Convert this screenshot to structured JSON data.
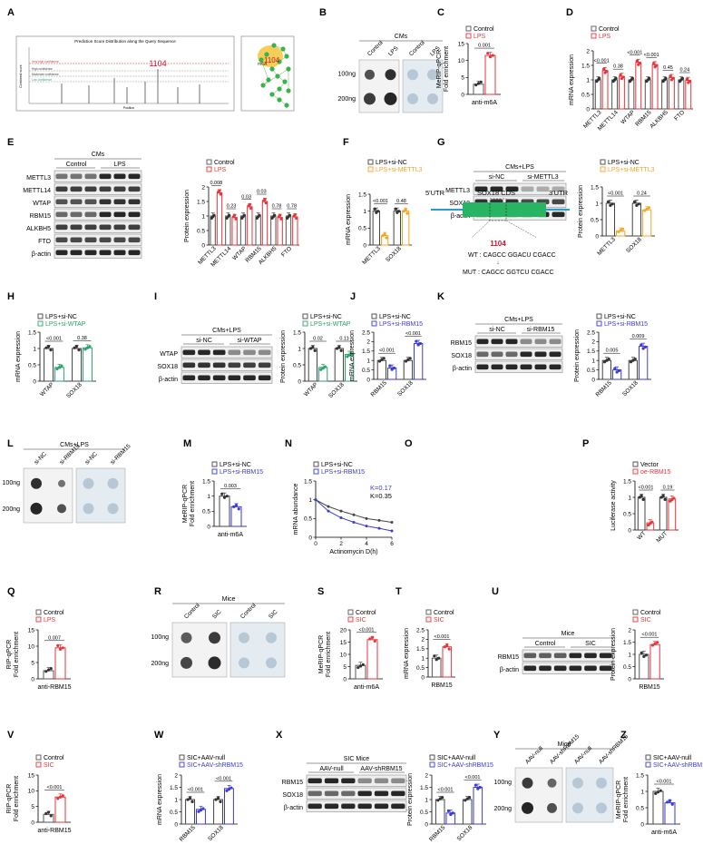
{
  "panels": [
    "A",
    "B",
    "C",
    "D",
    "E",
    "F",
    "G",
    "H",
    "I",
    "J",
    "K",
    "L",
    "M",
    "N",
    "O",
    "P",
    "Q",
    "R",
    "S",
    "T",
    "U",
    "V",
    "W",
    "X",
    "Y",
    "Z"
  ],
  "colors": {
    "control": "#555555",
    "lps": "#e8343a",
    "nc": "#444444",
    "si_orange": "#f5a623",
    "si_green": "#29a36a",
    "si_blue": "#3a3adb",
    "dot": "#1a1a1a",
    "dot_faint": "#b8c7d6"
  },
  "text": {
    "a_title": "Prediction Score Distribution along the Query Sequence",
    "a_mark": "1104",
    "a_leg1": "Very high confidence",
    "a_leg2": "High confidence",
    "a_leg3": "Moderate confidence",
    "a_leg4": "Low confidence",
    "a_x": "Position",
    "a_y": "Combined score",
    "m6a": "m6A",
    "anti_m6a": "anti-m6A",
    "anti_rbm15": "anti-RBM15",
    "ng100": "100ng",
    "ng200": "200ng",
    "cms": "CMs",
    "cms_lps": "CMs+LPS",
    "mice": "Mice",
    "sic_mice": "SIC Mice",
    "control": "Control",
    "lps": "LPS",
    "sic": "SIC",
    "si_nc": "si-NC",
    "si_mettl3": "si-METTL3",
    "si_wtap": "si-WTAP",
    "si_rbm15": "si-RBM15",
    "aav_null": "AAV-null",
    "aav_shrbm15": "AAV-shRBM15",
    "beta_actin": "β-actin",
    "sox18": "SOX18",
    "rbm15": "RBM15",
    "mettl3": "METTL3",
    "wtap": "WTAP",
    "merip": "MeRIP-qPCR",
    "fold": "Fold enrichment",
    "rip": "RIP-qPCR",
    "mrna": "mRNA expression",
    "protein": "Protein expression",
    "mrna_ab": "mRNA abundance",
    "luc": "Luciferase activity",
    "actd": "Actinomycin D(h)",
    "n_k1": "K=0.17",
    "n_k2": "K=0.35",
    "utr5": "5'UTR",
    "cds": "SOX18 CDS",
    "utr3": "3'UTR",
    "o_site": "1104",
    "wt_seq": "WT : CAGCC GGACU CGACC",
    "mut_seq": "MUT : CAGCC GGTCU CGACC",
    "wt": "WT",
    "mut": "MUT",
    "vector": "Vector",
    "oe_rbm15": "oe-RBM15"
  },
  "legends": {
    "ctrl_lps": [
      "Control",
      "LPS"
    ],
    "nc_mettl3": [
      "LPS+si-NC",
      "LPS+si-METTL3"
    ],
    "nc_wtap": [
      "LPS+si-NC",
      "LPS+si-WTAP"
    ],
    "nc_rbm15": [
      "LPS+si-NC",
      "LPS+si-RBM15"
    ],
    "vec_oe": [
      "Vector",
      "oe-RBM15"
    ],
    "ctrl_sic": [
      "Control",
      "SIC"
    ],
    "aav": [
      "SIC+AAV-null",
      "SIC+AAV-shRBM15"
    ]
  },
  "blot_labels": {
    "E": [
      "METTL3",
      "METTL14",
      "WTAP",
      "RBM15",
      "ALKBH5",
      "FTO",
      "β-actin"
    ],
    "G": [
      "METTL3",
      "SOX18",
      "β-actin"
    ],
    "I": [
      "WTAP",
      "SOX18",
      "β-actin"
    ],
    "K": [
      "RBM15",
      "SOX18",
      "β-actin"
    ],
    "U": [
      "RBM15",
      "β-actin"
    ],
    "X": [
      "RBM15",
      "SOX18",
      "β-actin"
    ]
  },
  "chart_data": [
    {
      "panel": "C",
      "type": "bar",
      "ylabel": "MeRIP-qPCR\nFold enrichment",
      "xlabel": "anti-m6A",
      "ylim": [
        0,
        15
      ],
      "yticks": [
        0,
        5,
        10,
        15
      ],
      "series": [
        {
          "name": "Control",
          "values": [
            3.0
          ]
        },
        {
          "name": "LPS",
          "values": [
            11.5
          ]
        }
      ],
      "pvals": [
        "0.001"
      ]
    },
    {
      "panel": "D",
      "type": "bar",
      "ylabel": "mRNA expression",
      "ylim": [
        0,
        2.0
      ],
      "yticks": [
        0,
        0.5,
        1.0,
        1.5,
        2.0
      ],
      "categories": [
        "METTL3",
        "METTL14",
        "WTAP",
        "RBM15",
        "ALKBH5",
        "FTO"
      ],
      "series": [
        {
          "name": "Control",
          "values": [
            1.0,
            1.0,
            1.0,
            1.0,
            1.0,
            1.0
          ]
        },
        {
          "name": "LPS",
          "values": [
            1.32,
            1.12,
            1.6,
            1.52,
            1.08,
            0.98
          ]
        }
      ],
      "pvals": [
        "<0.001",
        "0.38",
        "<0.001",
        "<0.001",
        "0.45",
        "0.24"
      ]
    },
    {
      "panel": "E",
      "type": "bar",
      "ylabel": "Protein expression",
      "ylim": [
        0,
        2.0
      ],
      "yticks": [
        0,
        0.5,
        1.0,
        1.5,
        2.0
      ],
      "categories": [
        "METTL3",
        "METTL14",
        "WTAP",
        "RBM15",
        "ALKBH5",
        "FTO"
      ],
      "series": [
        {
          "name": "Control",
          "values": [
            1.0,
            1.0,
            1.0,
            1.0,
            1.0,
            1.0
          ]
        },
        {
          "name": "LPS",
          "values": [
            1.8,
            0.95,
            1.32,
            1.5,
            0.95,
            0.97
          ]
        }
      ],
      "pvals": [
        "0.008",
        "0.23",
        "0.03",
        "0.03",
        "0.78",
        "0.78"
      ]
    },
    {
      "panel": "F",
      "type": "bar",
      "ylabel": "mRNA expression",
      "ylim": [
        0,
        1.5
      ],
      "yticks": [
        0,
        0.5,
        1.0,
        1.5
      ],
      "categories": [
        "METTL3",
        "SOX18"
      ],
      "series": [
        {
          "name": "LPS+si-NC",
          "values": [
            1.0,
            1.0
          ]
        },
        {
          "name": "LPS+si-METTL3",
          "values": [
            0.28,
            1.0
          ]
        }
      ],
      "pvals": [
        "<0.001",
        "0.48"
      ]
    },
    {
      "panel": "G",
      "type": "bar",
      "ylabel": "Protein expression",
      "ylim": [
        0,
        1.5
      ],
      "yticks": [
        0,
        0.5,
        1.0,
        1.5
      ],
      "categories": [
        "METTL3",
        "SOX18"
      ],
      "series": [
        {
          "name": "LPS+si-NC",
          "values": [
            1.0,
            1.0
          ]
        },
        {
          "name": "LPS+si-METTL3",
          "values": [
            0.15,
            0.8
          ]
        }
      ],
      "pvals": [
        "<0.001",
        "0.24"
      ]
    },
    {
      "panel": "H",
      "type": "bar",
      "ylabel": "mRNA expression",
      "ylim": [
        0,
        1.5
      ],
      "yticks": [
        0,
        0.5,
        1.0,
        1.5
      ],
      "categories": [
        "WTAP",
        "SOX18"
      ],
      "series": [
        {
          "name": "LPS+si-NC",
          "values": [
            1.0,
            1.0
          ]
        },
        {
          "name": "LPS+si-WTAP",
          "values": [
            0.42,
            1.02
          ]
        }
      ],
      "pvals": [
        "<0.001",
        "0.38"
      ]
    },
    {
      "panel": "I",
      "type": "bar",
      "ylabel": "Protein expression",
      "ylim": [
        0,
        1.5
      ],
      "yticks": [
        0,
        0.5,
        1.0,
        1.5
      ],
      "categories": [
        "WTAP",
        "SOX18"
      ],
      "series": [
        {
          "name": "LPS+si-NC",
          "values": [
            1.0,
            1.0
          ]
        },
        {
          "name": "LPS+si-WTAP",
          "values": [
            0.42,
            0.82
          ]
        }
      ],
      "pvals": [
        "0.02",
        "0.11"
      ]
    },
    {
      "panel": "J",
      "type": "bar",
      "ylabel": "mRNA expression",
      "ylim": [
        0,
        2.5
      ],
      "yticks": [
        0,
        0.5,
        1.0,
        1.5,
        2.0,
        2.5
      ],
      "categories": [
        "RBM15",
        "SOX18"
      ],
      "series": [
        {
          "name": "LPS+si-NC",
          "values": [
            1.0,
            1.0
          ]
        },
        {
          "name": "LPS+si-RBM15",
          "values": [
            0.6,
            1.9
          ]
        }
      ],
      "pvals": [
        "<0.001",
        "<0.001"
      ]
    },
    {
      "panel": "K",
      "type": "bar",
      "ylabel": "Protein expression",
      "ylim": [
        0,
        2.5
      ],
      "yticks": [
        0,
        0.5,
        1.0,
        1.5,
        2.0,
        2.5
      ],
      "categories": [
        "RBM15",
        "SOX18"
      ],
      "series": [
        {
          "name": "LPS+si-NC",
          "values": [
            1.0,
            1.0
          ]
        },
        {
          "name": "LPS+si-RBM15",
          "values": [
            0.5,
            1.75
          ]
        }
      ],
      "pvals": [
        "0.005",
        "0.009"
      ]
    },
    {
      "panel": "M",
      "type": "bar",
      "ylabel": "MeRIP-qPCR\nFold enrichment",
      "xlabel": "anti-m6A",
      "ylim": [
        0,
        1.5
      ],
      "yticks": [
        0,
        0.5,
        1.0,
        1.5
      ],
      "series": [
        {
          "name": "LPS+si-NC",
          "values": [
            1.0
          ]
        },
        {
          "name": "LPS+si-RBM15",
          "values": [
            0.65
          ]
        }
      ],
      "pvals": [
        "0.003"
      ]
    },
    {
      "panel": "N",
      "type": "line",
      "ylabel": "mRNA abundance",
      "xlabel": "Actinomycin D(h)",
      "xlim": [
        0,
        6
      ],
      "ylim": [
        0,
        1.5
      ],
      "xticks": [
        0,
        2,
        4,
        6
      ],
      "yticks": [
        0,
        0.5,
        1.0,
        1.5
      ],
      "x": [
        0,
        1,
        2,
        3,
        4,
        5,
        6
      ],
      "series": [
        {
          "name": "LPS+si-NC",
          "values": [
            1.0,
            0.82,
            0.7,
            0.6,
            0.5,
            0.45,
            0.4
          ]
        },
        {
          "name": "LPS+si-RBM15",
          "values": [
            1.0,
            0.7,
            0.52,
            0.4,
            0.3,
            0.24,
            0.17
          ]
        }
      ]
    },
    {
      "panel": "P",
      "type": "bar",
      "ylabel": "Luciferase activity",
      "ylim": [
        0,
        1.5
      ],
      "yticks": [
        0,
        0.5,
        1.0,
        1.5
      ],
      "categories": [
        "WT",
        "MUT"
      ],
      "series": [
        {
          "name": "Vector",
          "values": [
            1.0,
            1.0
          ]
        },
        {
          "name": "oe-RBM15",
          "values": [
            0.22,
            0.95
          ]
        }
      ],
      "pvals": [
        "<0.001",
        "0.19"
      ]
    },
    {
      "panel": "Q",
      "type": "bar",
      "ylabel": "RIP-qPCR\nFold enrichment",
      "xlabel": "anti-RBM15",
      "ylim": [
        0,
        15
      ],
      "yticks": [
        0,
        5,
        10,
        15
      ],
      "series": [
        {
          "name": "Control",
          "values": [
            2.5
          ]
        },
        {
          "name": "LPS",
          "values": [
            9.5
          ]
        }
      ],
      "pvals": [
        "0.007"
      ]
    },
    {
      "panel": "S",
      "type": "bar",
      "ylabel": "MeRIP-qPCR\nFold enrichment",
      "xlabel": "anti-m6A",
      "ylim": [
        0,
        20
      ],
      "yticks": [
        0,
        5,
        10,
        15,
        20
      ],
      "series": [
        {
          "name": "Control",
          "values": [
            5.5
          ]
        },
        {
          "name": "SIC",
          "values": [
            16.0
          ]
        }
      ],
      "pvals": [
        "<0.001"
      ]
    },
    {
      "panel": "T",
      "type": "bar",
      "ylabel": "mRNA expression",
      "xlabel": "RBM15",
      "ylim": [
        0,
        2.5
      ],
      "yticks": [
        0,
        0.5,
        1.0,
        1.5,
        2.0,
        2.5
      ],
      "series": [
        {
          "name": "Control",
          "values": [
            1.0
          ]
        },
        {
          "name": "SIC",
          "values": [
            1.6
          ]
        }
      ],
      "pvals": [
        "<0.001"
      ]
    },
    {
      "panel": "U",
      "type": "bar",
      "ylabel": "Protein expression",
      "xlabel": "RBM15",
      "ylim": [
        0,
        2.0
      ],
      "yticks": [
        0,
        0.5,
        1.0,
        1.5,
        2.0
      ],
      "series": [
        {
          "name": "Control",
          "values": [
            1.0
          ]
        },
        {
          "name": "SIC",
          "values": [
            1.4
          ]
        }
      ],
      "pvals": [
        "<0.001"
      ]
    },
    {
      "panel": "V",
      "type": "bar",
      "ylabel": "RIP-qPCR\nFold enrichment",
      "xlabel": "anti-RBM15",
      "ylim": [
        0,
        15
      ],
      "yticks": [
        0,
        5,
        10,
        15
      ],
      "series": [
        {
          "name": "Control",
          "values": [
            2.5
          ]
        },
        {
          "name": "SIC",
          "values": [
            8.0
          ]
        }
      ],
      "pvals": [
        "<0.001"
      ]
    },
    {
      "panel": "W",
      "type": "bar",
      "ylabel": "mRNA expression",
      "ylim": [
        0,
        2.0
      ],
      "yticks": [
        0,
        0.5,
        1.0,
        1.5,
        2.0
      ],
      "categories": [
        "RBM15",
        "SOX18"
      ],
      "series": [
        {
          "name": "SIC+AAV-null",
          "values": [
            1.0,
            1.0
          ]
        },
        {
          "name": "SIC+AAV-shRBM15",
          "values": [
            0.6,
            1.45
          ]
        }
      ],
      "pvals": [
        "<0.001",
        "<0.001"
      ]
    },
    {
      "panel": "X",
      "type": "bar",
      "ylabel": "Protein expression",
      "ylim": [
        0,
        2.0
      ],
      "yticks": [
        0,
        0.5,
        1.0,
        1.5,
        2.0
      ],
      "categories": [
        "RBM15",
        "SOX18"
      ],
      "series": [
        {
          "name": "SIC+AAV-null",
          "values": [
            1.0,
            1.0
          ]
        },
        {
          "name": "SIC+AAV-shRBM15",
          "values": [
            0.45,
            1.5
          ]
        }
      ],
      "pvals": [
        "<0.001",
        "<0.001"
      ]
    },
    {
      "panel": "Z",
      "type": "bar",
      "ylabel": "MeRIP-qPCR\nFold enrichment",
      "xlabel": "anti-m6A",
      "ylim": [
        0,
        1.5
      ],
      "yticks": [
        0,
        0.5,
        1.0,
        1.5
      ],
      "series": [
        {
          "name": "SIC+AAV-null",
          "values": [
            1.0
          ]
        },
        {
          "name": "SIC+AAV-shRBM15",
          "values": [
            0.65
          ]
        }
      ],
      "pvals": [
        "<0.001"
      ]
    }
  ]
}
